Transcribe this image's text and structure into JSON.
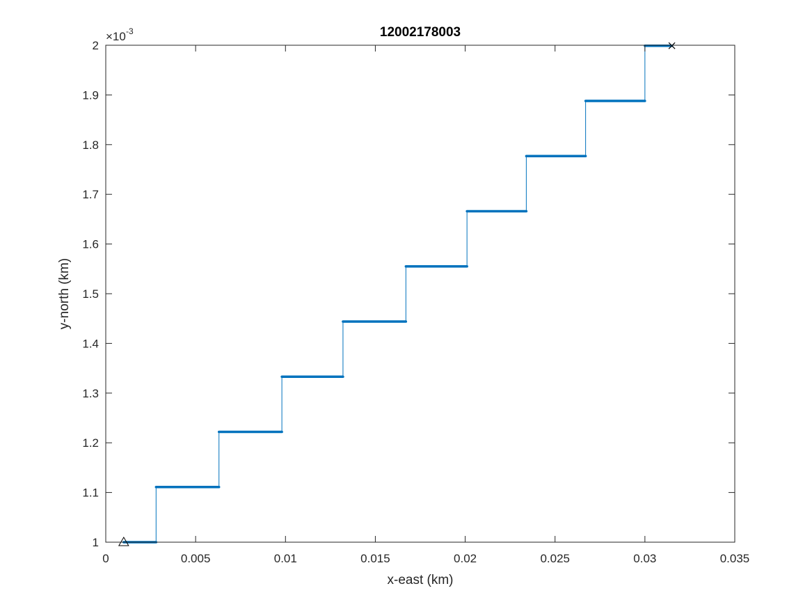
{
  "chart_data": {
    "type": "line",
    "title": "12002178003",
    "xlabel": "x-east (km)",
    "ylabel": "y-north (km)",
    "xlim": [
      0,
      0.035
    ],
    "ylim": [
      1,
      2
    ],
    "y_exponent_base": "×10",
    "y_exponent_power": "-3",
    "x_ticks": [
      0,
      0.005,
      0.01,
      0.015,
      0.02,
      0.025,
      0.03,
      0.035
    ],
    "x_tick_labels": [
      "0",
      "0.005",
      "0.01",
      "0.015",
      "0.02",
      "0.025",
      "0.03",
      "0.035"
    ],
    "y_ticks": [
      1,
      1.1,
      1.2,
      1.3,
      1.4,
      1.5,
      1.6,
      1.7,
      1.8,
      1.9,
      2
    ],
    "y_tick_labels": [
      "1",
      "1.1",
      "1.2",
      "1.3",
      "1.4",
      "1.5",
      "1.6",
      "1.7",
      "1.8",
      "1.9",
      "2"
    ],
    "grid": false,
    "series": [
      {
        "color": "#0072BD",
        "marker": "dot",
        "steps": [
          {
            "x_start": 0.001,
            "x_end": 0.0028,
            "y": 1.0
          },
          {
            "x_start": 0.0028,
            "x_end": 0.0063,
            "y": 1.111
          },
          {
            "x_start": 0.0063,
            "x_end": 0.0098,
            "y": 1.222
          },
          {
            "x_start": 0.0098,
            "x_end": 0.0132,
            "y": 1.333
          },
          {
            "x_start": 0.0132,
            "x_end": 0.0167,
            "y": 1.444
          },
          {
            "x_start": 0.0167,
            "x_end": 0.0201,
            "y": 1.555
          },
          {
            "x_start": 0.0201,
            "x_end": 0.0234,
            "y": 1.666
          },
          {
            "x_start": 0.0234,
            "x_end": 0.0267,
            "y": 1.777
          },
          {
            "x_start": 0.0267,
            "x_end": 0.03,
            "y": 1.888
          },
          {
            "x_start": 0.03,
            "x_end": 0.0315,
            "y": 1.999
          }
        ]
      }
    ],
    "start_marker": {
      "shape": "triangle",
      "x": 0.001,
      "y": 1.0,
      "color": "#000000"
    },
    "end_marker": {
      "shape": "x",
      "x": 0.0315,
      "y": 1.999,
      "color": "#000000"
    }
  }
}
